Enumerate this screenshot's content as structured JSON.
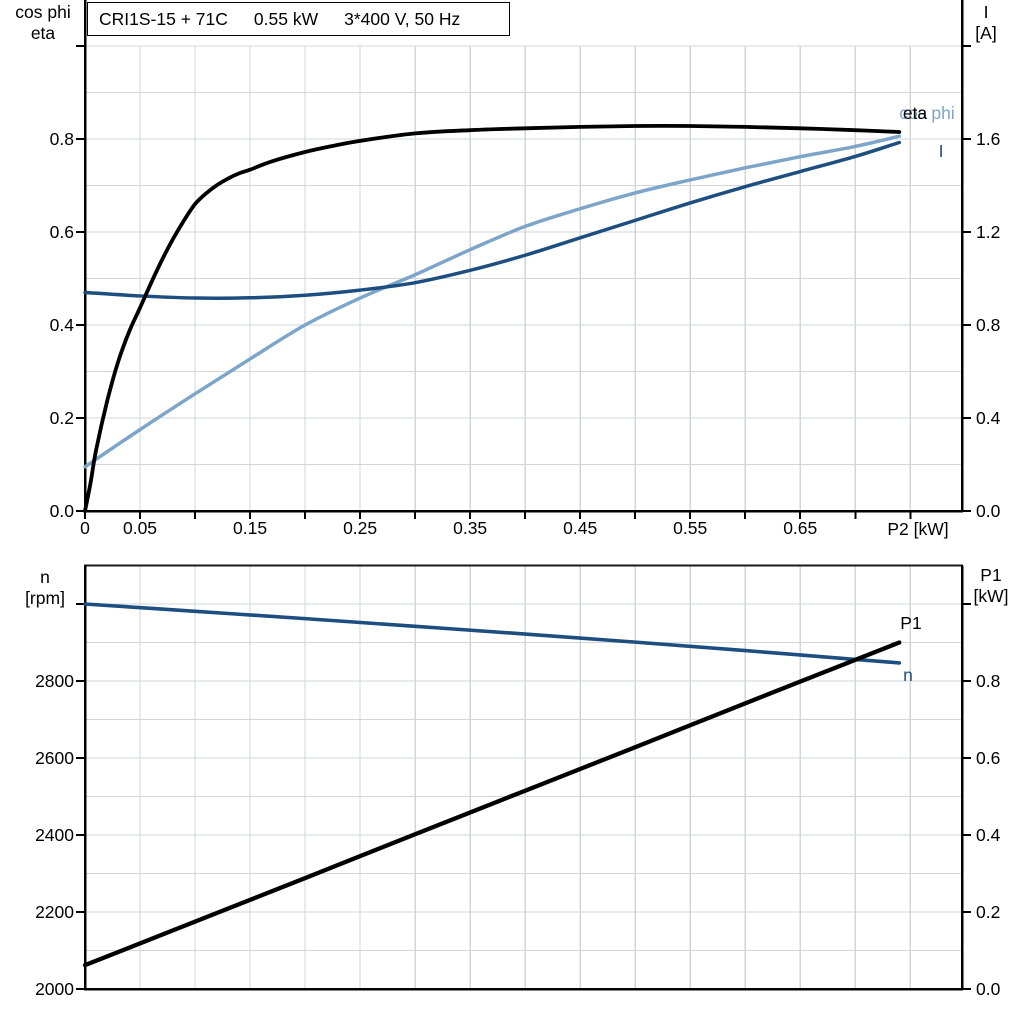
{
  "title_box": {
    "model": "CRI1S-15 + 71C",
    "power": "0.55 kW",
    "supply": "3*400 V, 50 Hz"
  },
  "axes_titles": {
    "top_left_line1": "cos phi",
    "top_left_line2": "eta",
    "top_right_line1": "I",
    "top_right_line2": "[A]",
    "bottom_left_line1": "n",
    "bottom_left_line2": "[rpm]",
    "bottom_right_line1": "P1",
    "bottom_right_line2": "[kW]",
    "x_axis": "P2 [kW]"
  },
  "colors": {
    "black": "#000000",
    "dark_blue": "#1d4e7f",
    "light_blue": "#7da5c9",
    "grid": "#d3d5d7"
  },
  "chart_data": [
    {
      "type": "line",
      "title": "CRI1S-15 + 71C  0.55 kW  3*400 V, 50 Hz",
      "xlabel": "P2 [kW]",
      "ylabel_left": "cos phi / eta",
      "ylabel_right": "I [A]",
      "xlim": [
        0,
        0.797
      ],
      "ylim_left": [
        0,
        1.0
      ],
      "ylim_right": [
        0,
        2.0
      ],
      "grid": true,
      "grid_x": [
        0.05,
        0.1,
        0.15,
        0.2,
        0.25,
        0.3,
        0.35,
        0.4,
        0.45,
        0.5,
        0.55,
        0.6,
        0.65,
        0.7,
        0.75
      ],
      "grid_y": [
        0.1,
        0.2,
        0.3,
        0.4,
        0.5,
        0.6,
        0.7,
        0.8,
        0.9,
        1.0
      ],
      "x_ticks": {
        "values": [
          0,
          0.05,
          0.1,
          0.15,
          0.2,
          0.25,
          0.3,
          0.35,
          0.4,
          0.45,
          0.5,
          0.55,
          0.6,
          0.65,
          0.7,
          0.75
        ],
        "labels": [
          "0",
          "0.05",
          "",
          "0.15",
          "",
          "0.25",
          "",
          "0.35",
          "",
          "0.45",
          "",
          "0.55",
          "",
          "0.65",
          "",
          ""
        ]
      },
      "yticks_left": {
        "values": [
          0,
          0.2,
          0.4,
          0.6,
          0.8,
          1.0
        ],
        "labels": [
          "0.0",
          "0.2",
          "0.4",
          "0.6",
          "0.8",
          ""
        ]
      },
      "yticks_right": {
        "values": [
          0,
          0.4,
          0.8,
          1.2,
          1.6,
          2.0
        ],
        "labels": [
          "0.0",
          "0.4",
          "0.8",
          "1.2",
          "1.6",
          ""
        ]
      },
      "series": [
        {
          "name": "cos_phi",
          "label": "cos phi",
          "axis": "left",
          "color_key": "light_blue",
          "x": [
            0,
            0.05,
            0.1,
            0.15,
            0.2,
            0.25,
            0.3,
            0.35,
            0.4,
            0.45,
            0.5,
            0.55,
            0.6,
            0.65,
            0.7,
            0.74
          ],
          "y": [
            0.095,
            0.175,
            0.252,
            0.327,
            0.4,
            0.458,
            0.508,
            0.562,
            0.612,
            0.65,
            0.684,
            0.712,
            0.738,
            0.762,
            0.784,
            0.806
          ]
        },
        {
          "name": "I",
          "label": "I",
          "axis": "right",
          "color_key": "dark_blue",
          "x": [
            0,
            0.05,
            0.1,
            0.15,
            0.2,
            0.25,
            0.3,
            0.35,
            0.4,
            0.45,
            0.5,
            0.55,
            0.6,
            0.65,
            0.7,
            0.74
          ],
          "y": [
            0.94,
            0.925,
            0.916,
            0.917,
            0.928,
            0.95,
            0.982,
            1.035,
            1.1,
            1.175,
            1.25,
            1.325,
            1.395,
            1.46,
            1.525,
            1.585
          ]
        },
        {
          "name": "eta",
          "label": "eta",
          "axis": "left",
          "color_key": "black",
          "x": [
            0,
            0.005,
            0.01,
            0.02,
            0.03,
            0.04,
            0.05,
            0.06,
            0.07,
            0.08,
            0.09,
            0.1,
            0.11,
            0.12,
            0.13,
            0.14,
            0.15,
            0.17,
            0.2,
            0.225,
            0.25,
            0.3,
            0.35,
            0.4,
            0.45,
            0.5,
            0.55,
            0.6,
            0.65,
            0.7,
            0.74
          ],
          "y": [
            0,
            0.06,
            0.13,
            0.235,
            0.32,
            0.385,
            0.437,
            0.49,
            0.54,
            0.585,
            0.625,
            0.66,
            0.683,
            0.701,
            0.715,
            0.726,
            0.734,
            0.752,
            0.772,
            0.785,
            0.796,
            0.812,
            0.819,
            0.823,
            0.826,
            0.828,
            0.828,
            0.826,
            0.823,
            0.819,
            0.815
          ]
        }
      ]
    },
    {
      "type": "line",
      "title": "",
      "xlabel": "",
      "ylabel_left": "n [rpm]",
      "ylabel_right": "P1 [kW]",
      "xlim": [
        0,
        0.797
      ],
      "ylim_left": [
        2000,
        3100
      ],
      "ylim_right": [
        0,
        1.1
      ],
      "grid": true,
      "grid_x": [
        0.05,
        0.1,
        0.15,
        0.2,
        0.25,
        0.3,
        0.35,
        0.4,
        0.45,
        0.5,
        0.55,
        0.6,
        0.65,
        0.7,
        0.75
      ],
      "grid_y": [
        2100,
        2200,
        2300,
        2400,
        2500,
        2600,
        2700,
        2800,
        2900,
        3000
      ],
      "x_ticks": {
        "values": [],
        "labels": []
      },
      "yticks_left": {
        "values": [
          2000,
          2200,
          2400,
          2600,
          2800,
          3000
        ],
        "labels": [
          "2000",
          "2200",
          "2400",
          "2600",
          "2800",
          ""
        ]
      },
      "yticks_right": {
        "values": [
          0,
          0.2,
          0.4,
          0.6,
          0.8,
          1.0
        ],
        "labels": [
          "0.0",
          "0.2",
          "0.4",
          "0.6",
          "0.8",
          ""
        ]
      },
      "series": [
        {
          "name": "n",
          "label": "n",
          "axis": "left",
          "color_key": "dark_blue",
          "x": [
            0,
            0.1,
            0.2,
            0.3,
            0.4,
            0.5,
            0.6,
            0.7,
            0.74
          ],
          "y": [
            3000,
            2981,
            2962,
            2942,
            2922,
            2901,
            2879,
            2856,
            2847
          ]
        },
        {
          "name": "P1",
          "label": "P1",
          "axis": "right",
          "color_key": "black",
          "x": [
            0,
            0.1,
            0.2,
            0.3,
            0.4,
            0.5,
            0.6,
            0.7,
            0.74
          ],
          "y": [
            0.062,
            0.175,
            0.288,
            0.402,
            0.515,
            0.628,
            0.742,
            0.855,
            0.9
          ]
        }
      ]
    }
  ]
}
